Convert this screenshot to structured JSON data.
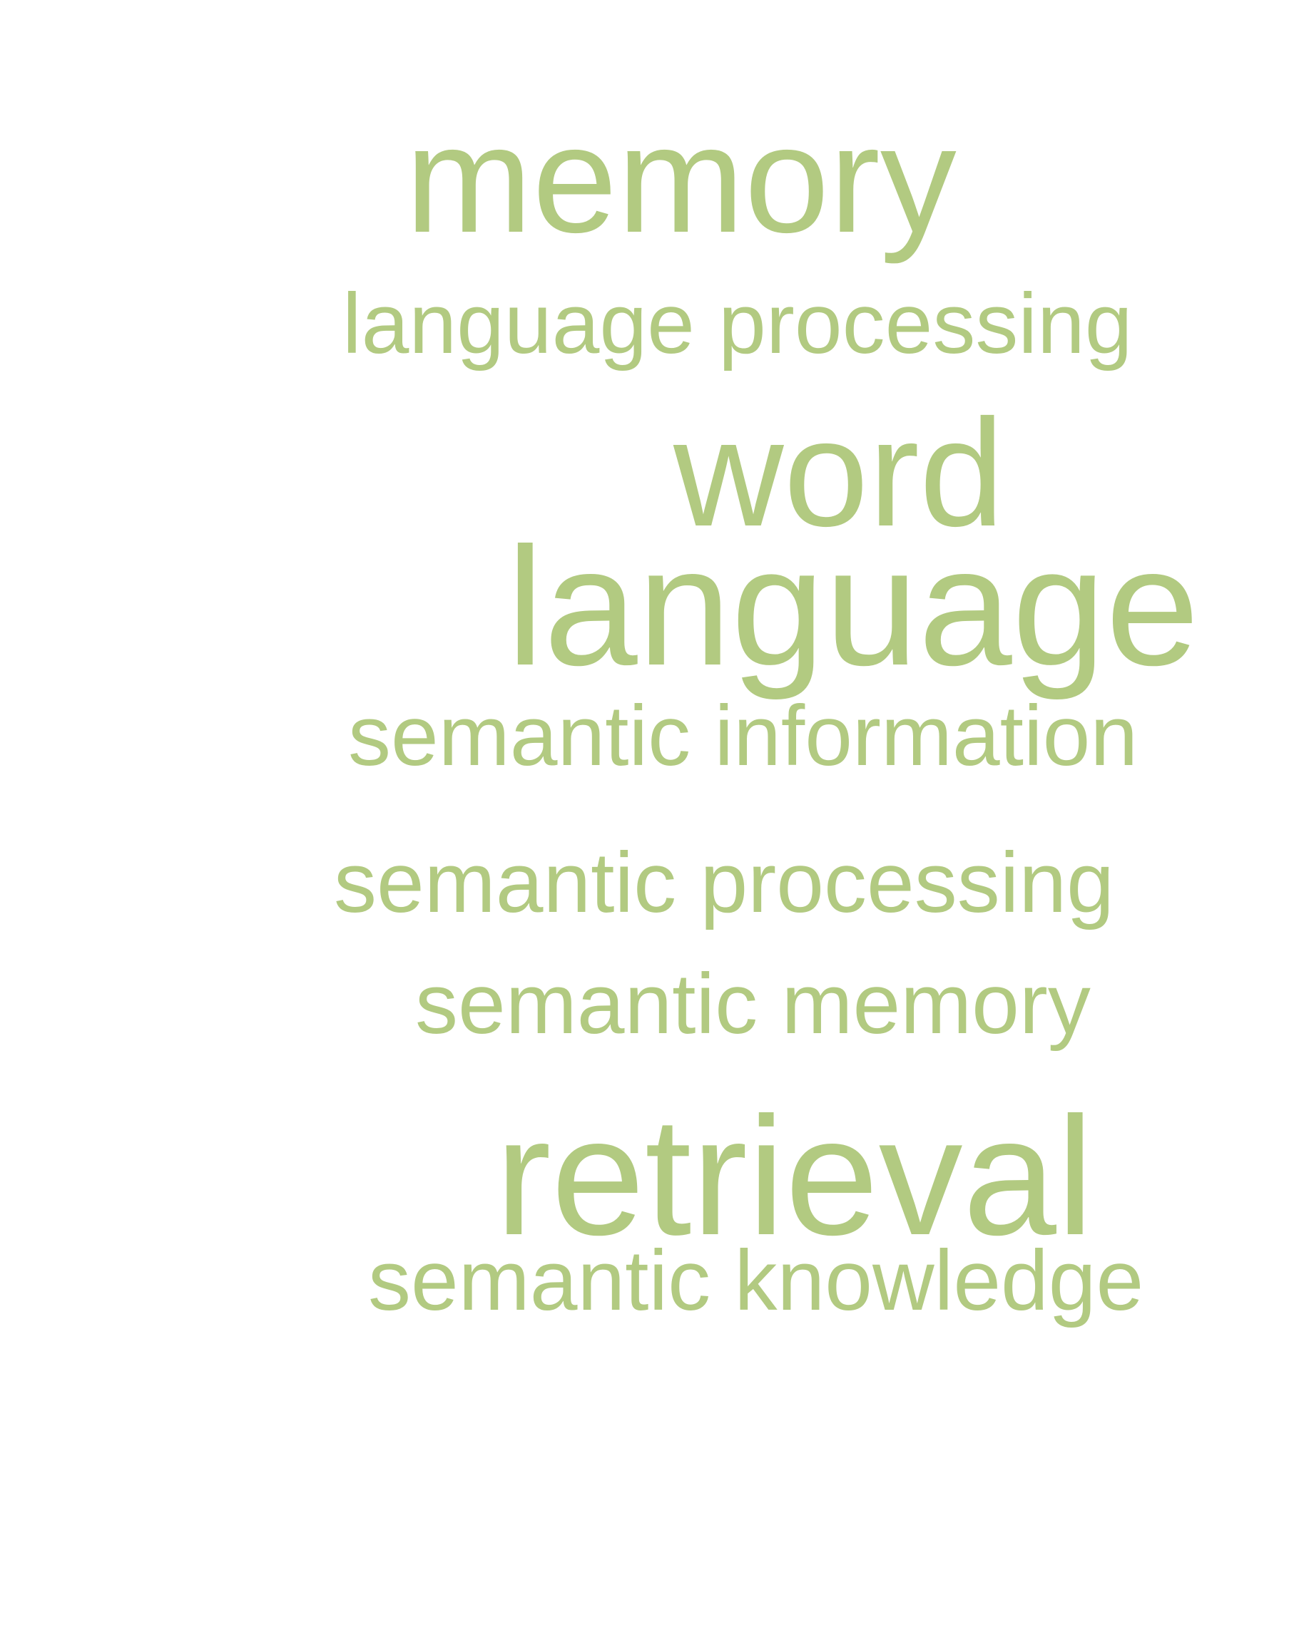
{
  "word_cloud": {
    "color": "#b2ca81",
    "terms": [
      {
        "text": "memory",
        "size": "large"
      },
      {
        "text": "language processing",
        "size": "small"
      },
      {
        "text": "word",
        "size": "large"
      },
      {
        "text": "language",
        "size": "largest"
      },
      {
        "text": "semantic information",
        "size": "small"
      },
      {
        "text": "semantic processing",
        "size": "small"
      },
      {
        "text": "semantic memory",
        "size": "small"
      },
      {
        "text": "retrieval",
        "size": "largest"
      },
      {
        "text": "semantic knowledge",
        "size": "small"
      }
    ]
  }
}
